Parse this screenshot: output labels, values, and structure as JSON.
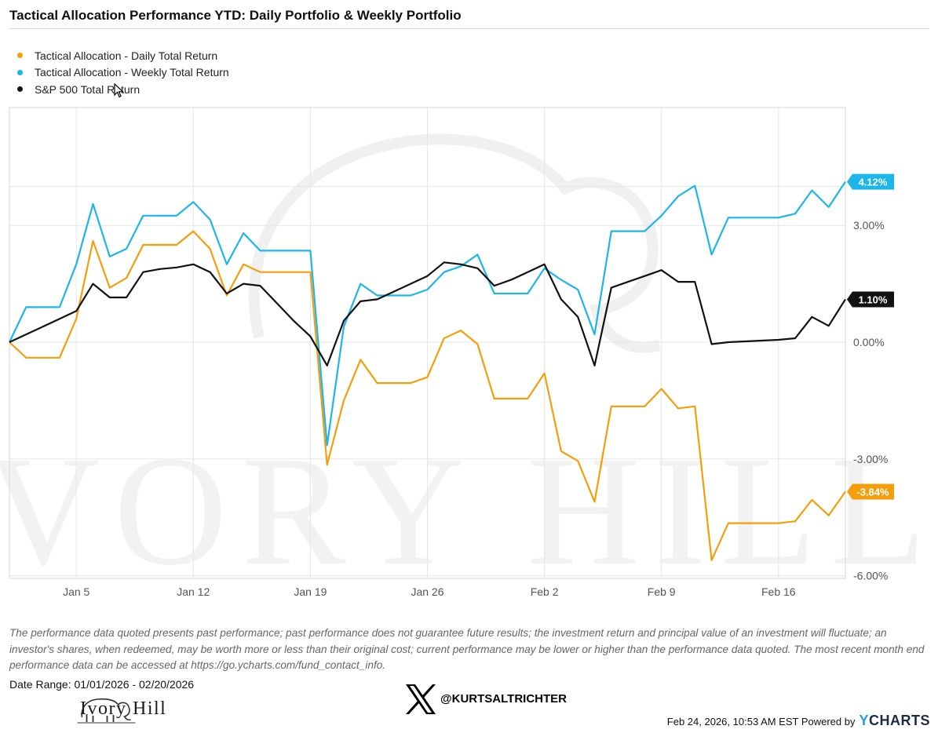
{
  "title": "Tactical Allocation Performance YTD: Daily Portfolio & Weekly Portfolio",
  "legend": [
    {
      "label": "Tactical Allocation - Daily Total Return",
      "color": "#f59e0b"
    },
    {
      "label": "Tactical Allocation - Weekly Total Return",
      "color": "#1cb6e8"
    },
    {
      "label": "S&P 500 Total Return",
      "color": "#111111"
    }
  ],
  "chart_data": {
    "type": "line",
    "x_axis_ticks": [
      "Jan 5",
      "Jan 12",
      "Jan 19",
      "Jan 26",
      "Feb 2",
      "Feb 9",
      "Feb 16"
    ],
    "y_axis_ticks": [
      "3.00%",
      "0.00%",
      "-3.00%",
      "-6.00%"
    ],
    "ylim": [
      -6,
      6
    ],
    "grid": true,
    "legend_position": "top-left",
    "x_dates_2026": [
      "Jan 1",
      "Jan 2",
      "Jan 3",
      "Jan 4",
      "Jan 5",
      "Jan 6",
      "Jan 7",
      "Jan 8",
      "Jan 9",
      "Jan 10",
      "Jan 11",
      "Jan 12",
      "Jan 13",
      "Jan 14",
      "Jan 15",
      "Jan 16",
      "Jan 17",
      "Jan 18",
      "Jan 19",
      "Jan 20",
      "Jan 21",
      "Jan 22",
      "Jan 23",
      "Jan 24",
      "Jan 25",
      "Jan 26",
      "Jan 27",
      "Jan 28",
      "Jan 29",
      "Jan 30",
      "Jan 31",
      "Feb 1",
      "Feb 2",
      "Feb 3",
      "Feb 4",
      "Feb 5",
      "Feb 6",
      "Feb 7",
      "Feb 8",
      "Feb 9",
      "Feb 10",
      "Feb 11",
      "Feb 12",
      "Feb 13",
      "Feb 14",
      "Feb 15",
      "Feb 16",
      "Feb 17",
      "Feb 18",
      "Feb 19",
      "Feb 20"
    ],
    "series": [
      {
        "name": "Tactical Allocation - Daily Total Return",
        "color": "#f59e0b",
        "end_label": "-3.84%",
        "values": [
          0,
          -0.4,
          -0.4,
          -0.4,
          0.6,
          2.6,
          1.4,
          1.65,
          2.5,
          2.5,
          2.5,
          2.85,
          2.4,
          1.2,
          2.0,
          1.8,
          1.8,
          1.8,
          1.8,
          -3.15,
          -1.5,
          -0.45,
          -1.05,
          -1.05,
          -1.05,
          -0.9,
          0.1,
          0.3,
          -0.05,
          -1.45,
          -1.45,
          -1.45,
          -0.8,
          -2.8,
          -3.05,
          -4.1,
          -1.65,
          -1.65,
          -1.65,
          -1.2,
          -1.7,
          -1.65,
          -5.6,
          -4.65,
          -4.65,
          -4.65,
          -4.65,
          -4.6,
          -4.05,
          -4.45,
          -3.84
        ]
      },
      {
        "name": "Tactical Allocation - Weekly Total Return",
        "color": "#1cb6e8",
        "end_label": "4.12%",
        "values": [
          0,
          0.9,
          0.9,
          0.9,
          2.0,
          3.55,
          2.2,
          2.4,
          3.25,
          3.25,
          3.25,
          3.6,
          3.15,
          2.0,
          2.8,
          2.35,
          2.35,
          2.35,
          2.35,
          -2.65,
          0.4,
          1.5,
          1.2,
          1.2,
          1.2,
          1.35,
          1.8,
          1.95,
          2.25,
          1.25,
          1.25,
          1.25,
          1.9,
          1.6,
          1.35,
          0.2,
          2.85,
          2.85,
          2.85,
          3.25,
          3.75,
          4.02,
          2.25,
          3.2,
          3.2,
          3.2,
          3.2,
          3.3,
          3.9,
          3.47,
          4.12
        ]
      },
      {
        "name": "S&P 500 Total Return",
        "color": "#111111",
        "end_label": "1.10%",
        "values": [
          0,
          0.2,
          0.4,
          0.6,
          0.8,
          1.5,
          1.15,
          1.15,
          1.8,
          1.88,
          1.92,
          2.0,
          1.8,
          1.25,
          1.5,
          1.45,
          1.0,
          0.55,
          0.15,
          -0.6,
          0.55,
          1.05,
          1.1,
          1.3,
          1.5,
          1.7,
          2.05,
          2.0,
          1.9,
          1.45,
          1.6,
          1.8,
          2.0,
          1.1,
          0.65,
          -0.6,
          1.4,
          1.55,
          1.7,
          1.85,
          1.55,
          1.55,
          -0.05,
          0.0,
          0.02,
          0.04,
          0.06,
          0.1,
          0.65,
          0.42,
          1.1
        ]
      }
    ]
  },
  "disclaimer": "The performance data quoted presents past performance; past performance does not guarantee future results; the investment return and principal value of an investment will fluctuate; an investor's shares, when redeemed, may be worth more or less than their original cost; current performance may be lower or higher than the performance data quoted. The most recent month end performance data can be accessed at https://go.ycharts.com/fund_contact_info.",
  "date_range": "Date Range: 01/01/2026 - 02/20/2026",
  "logo_text": "Ivory Hill",
  "watermark_text": "IVORY HILL",
  "social_handle": "@KURTSALTRICHTER",
  "footer": {
    "timestamp": "Feb 24, 2026, 10:53 AM EST Powered by",
    "brand_y": "Y",
    "brand_rest": "CHARTS"
  }
}
